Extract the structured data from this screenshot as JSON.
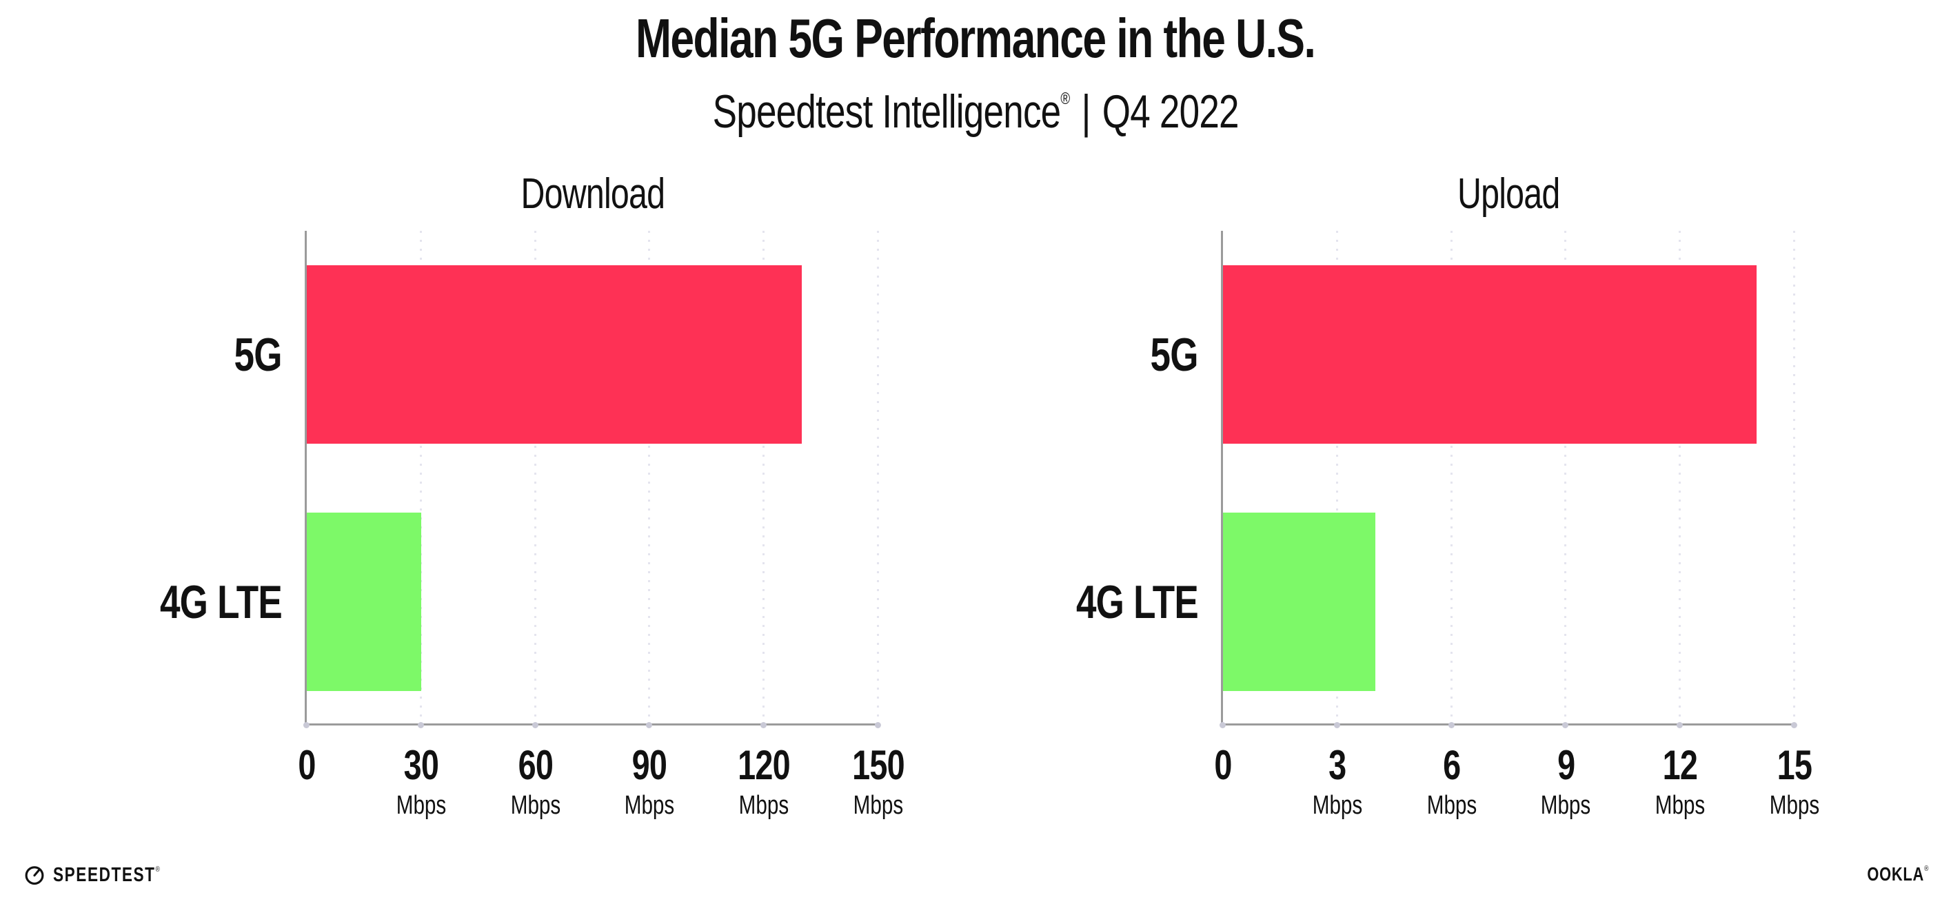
{
  "header": {
    "title": "Median 5G Performance in the U.S.",
    "subtitle": {
      "brand": "Speedtest Intelligence",
      "registered_mark": "®",
      "divider": "|",
      "period": "Q4 2022"
    }
  },
  "chart_data": [
    {
      "type": "bar",
      "orientation": "horizontal",
      "title": "Download",
      "categories": [
        "5G",
        "4G LTE"
      ],
      "values": [
        130,
        30
      ],
      "unit": "Mbps",
      "xlim": [
        0,
        150
      ],
      "xticks": [
        0,
        30,
        60,
        90,
        120,
        150
      ],
      "tick_unit_label": "Mbps",
      "grid": "vertical dotted, no data labels",
      "bar_colors": [
        "#FE3155",
        "#7DF968"
      ]
    },
    {
      "type": "bar",
      "orientation": "horizontal",
      "title": "Upload",
      "categories": [
        "5G",
        "4G LTE"
      ],
      "values": [
        14,
        4
      ],
      "unit": "Mbps",
      "xlim": [
        0,
        15
      ],
      "xticks": [
        0,
        3,
        6,
        9,
        12,
        15
      ],
      "tick_unit_label": "Mbps",
      "grid": "vertical dotted, no data labels",
      "bar_colors": [
        "#FE3155",
        "#7DF968"
      ]
    }
  ],
  "footer": {
    "speedtest": {
      "icon": "speedtest-gauge-icon",
      "label": "SPEEDTEST",
      "mark": "®"
    },
    "ookla": {
      "label": "OOKLA",
      "mark": "®"
    }
  },
  "colors": {
    "background": "#FFFFFF",
    "bar_5g": "#FE3155",
    "bar_4g_lte": "#7DF968",
    "axis": "#9B9B9B",
    "gridline": "#E4E4EE",
    "tick_dot": "#C9C9D6",
    "text": "#111111"
  }
}
